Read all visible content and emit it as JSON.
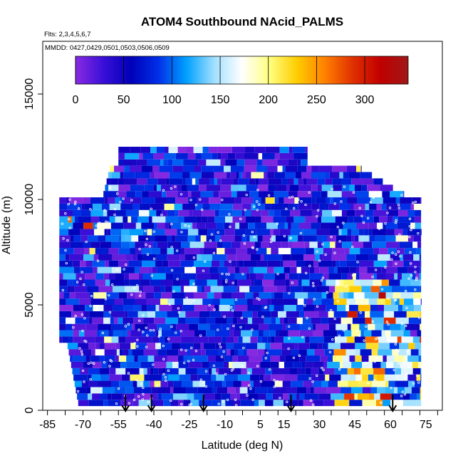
{
  "chart_data": {
    "type": "heatmap",
    "title": "ATOM4 Southbound NAcid_PALMS",
    "flights_note": "Flts: 2,3,4,5,6,7",
    "dates_note": "MMDD: 0427,0429,0501,0503,0506,0509",
    "xlabel": "Latitude (deg N)",
    "ylabel": "Altitude (m)",
    "xlim": [
      -87,
      82
    ],
    "ylim": [
      0,
      17500
    ],
    "x_ticks": [
      -85,
      -70,
      -55,
      -40,
      -25,
      -10,
      5,
      15,
      30,
      45,
      60,
      75
    ],
    "x_tick_labels": [
      "-85",
      "-70",
      "-55",
      "-40",
      "-25",
      "-10",
      "5",
      "15",
      "30",
      "45",
      "60",
      "75"
    ],
    "y_ticks": [
      0,
      5000,
      10000,
      15000
    ],
    "y_tick_labels": [
      "0",
      "5000",
      "10000",
      "15000"
    ],
    "colorbar": {
      "min": 0,
      "max": 345,
      "ticks": [
        0,
        50,
        100,
        150,
        200,
        250,
        300
      ],
      "tick_labels": [
        "0",
        "50",
        "100",
        "150",
        "200",
        "250",
        "300"
      ],
      "colors": [
        "#8a2be2",
        "#3a0fd8",
        "#0000b8",
        "#0030e8",
        "#00a0ff",
        "#a0e0ff",
        "#ffffff",
        "#ffff80",
        "#ffcc00",
        "#ff8000",
        "#e03000",
        "#c00000",
        "#a01818"
      ]
    },
    "curtain_extent": {
      "lat_min": -80,
      "lat_max": 73,
      "alt_band_bottom": 200,
      "alt_band_top": 12500
    },
    "profile_latitudes": [
      -52,
      -41,
      -19,
      18,
      61
    ],
    "colors": {
      "high_value": "#ff8c00",
      "mid_value": "#00aaff",
      "low_value": "#8a2be2",
      "marker": "#000000"
    }
  }
}
